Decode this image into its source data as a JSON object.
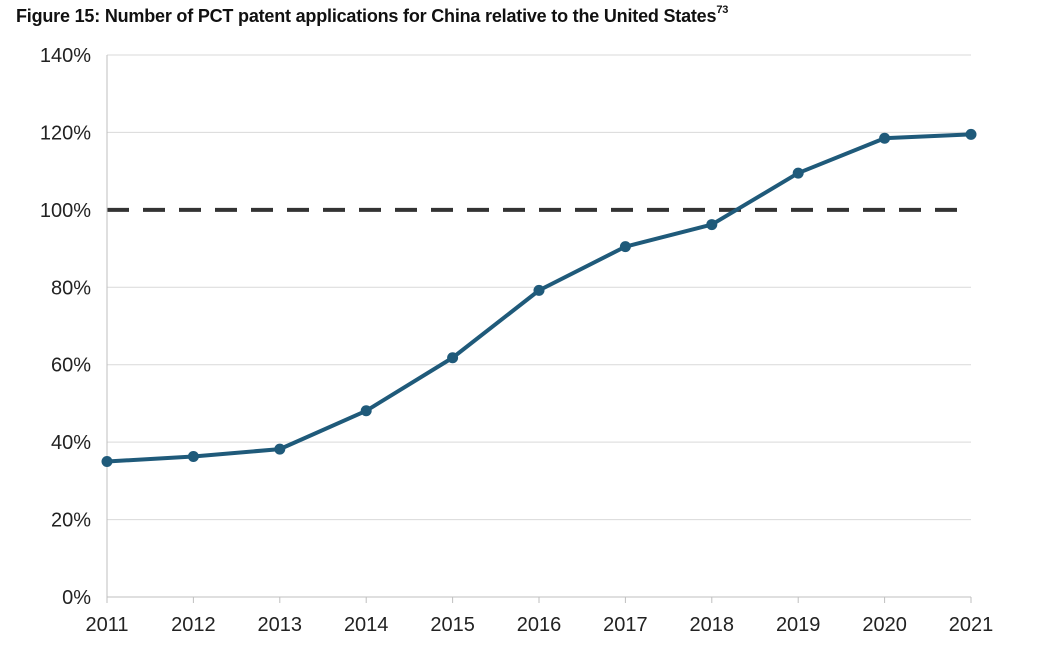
{
  "figure": {
    "title": "Figure 15: Number of PCT patent applications for China relative to the United States",
    "footnote_ref": "73"
  },
  "chart_data": {
    "type": "line",
    "title": "Figure 15: Number of PCT patent applications for China relative to the United States",
    "xlabel": "",
    "ylabel": "",
    "categories": [
      "2011",
      "2012",
      "2013",
      "2014",
      "2015",
      "2016",
      "2017",
      "2018",
      "2019",
      "2020",
      "2021"
    ],
    "series": [
      {
        "name": "China relative to the United States",
        "values": [
          35,
          36.3,
          38.2,
          48.1,
          61.8,
          79.2,
          90.5,
          96.2,
          109.5,
          118.5,
          119.5
        ],
        "color": "#1f5a7a"
      }
    ],
    "reference_line": {
      "value": 100,
      "style": "dashed",
      "color": "#333333"
    },
    "ylim": [
      0,
      140
    ],
    "yticks": [
      0,
      20,
      40,
      60,
      80,
      100,
      120,
      140
    ],
    "ytick_labels": [
      "0%",
      "20%",
      "40%",
      "60%",
      "80%",
      "100%",
      "120%",
      "140%"
    ],
    "grid": true
  }
}
